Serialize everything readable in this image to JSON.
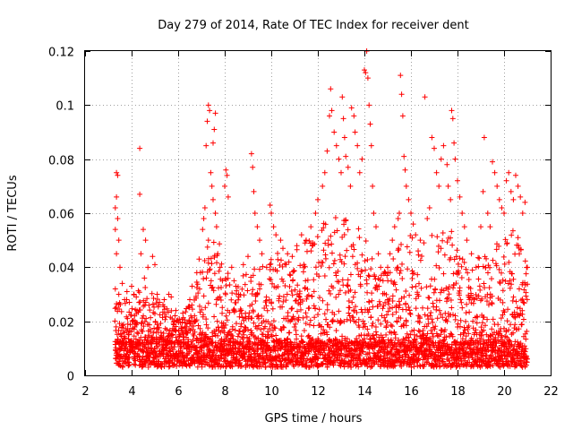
{
  "chart_data": {
    "type": "scatter",
    "title": "Day 279 of 2014, Rate Of TEC Index for receiver dent",
    "xlabel": "GPS time / hours",
    "ylabel": "ROTI / TECUs",
    "xlim": [
      2,
      22
    ],
    "ylim": [
      0,
      0.12
    ],
    "xticks": [
      "2",
      "4",
      "6",
      "8",
      "10",
      "12",
      "14",
      "16",
      "18",
      "20",
      "22"
    ],
    "yticks": [
      "0",
      "0.02",
      "0.04",
      "0.06",
      "0.08",
      "0.1",
      "0.12"
    ],
    "grid": true,
    "marker": "+",
    "marker_color": "#ff0000",
    "series": [
      {
        "name": "ROTI",
        "points": [
          [
            3.35,
            0.075
          ],
          [
            3.4,
            0.074
          ],
          [
            3.35,
            0.066
          ],
          [
            3.3,
            0.062
          ],
          [
            3.4,
            0.058
          ],
          [
            3.3,
            0.054
          ],
          [
            3.45,
            0.05
          ],
          [
            3.35,
            0.045
          ],
          [
            3.5,
            0.04
          ],
          [
            3.3,
            0.032
          ],
          [
            3.45,
            0.03
          ],
          [
            3.6,
            0.034
          ],
          [
            3.8,
            0.031
          ],
          [
            3.9,
            0.027
          ],
          [
            4.0,
            0.033
          ],
          [
            4.1,
            0.03
          ],
          [
            4.2,
            0.029
          ],
          [
            4.35,
            0.084
          ],
          [
            4.35,
            0.067
          ],
          [
            4.5,
            0.054
          ],
          [
            4.6,
            0.05
          ],
          [
            4.4,
            0.045
          ],
          [
            4.7,
            0.04
          ],
          [
            4.55,
            0.036
          ],
          [
            4.9,
            0.044
          ],
          [
            5.0,
            0.041
          ],
          [
            5.1,
            0.03
          ],
          [
            5.2,
            0.027
          ],
          [
            5.4,
            0.028
          ],
          [
            5.6,
            0.03
          ],
          [
            5.7,
            0.029
          ],
          [
            5.9,
            0.024
          ],
          [
            6.2,
            0.023
          ],
          [
            6.5,
            0.028
          ],
          [
            6.6,
            0.033
          ],
          [
            6.8,
            0.038
          ],
          [
            6.9,
            0.043
          ],
          [
            7.05,
            0.054
          ],
          [
            7.1,
            0.058
          ],
          [
            7.15,
            0.062
          ],
          [
            7.2,
            0.085
          ],
          [
            7.25,
            0.094
          ],
          [
            7.3,
            0.1
          ],
          [
            7.35,
            0.098
          ],
          [
            7.5,
            0.086
          ],
          [
            7.55,
            0.091
          ],
          [
            7.6,
            0.097
          ],
          [
            7.4,
            0.075
          ],
          [
            7.45,
            0.07
          ],
          [
            7.5,
            0.065
          ],
          [
            7.6,
            0.06
          ],
          [
            7.65,
            0.055
          ],
          [
            7.3,
            0.05
          ],
          [
            7.7,
            0.045
          ],
          [
            7.8,
            0.04
          ],
          [
            7.9,
            0.035
          ],
          [
            8.0,
            0.07
          ],
          [
            8.05,
            0.076
          ],
          [
            8.1,
            0.074
          ],
          [
            8.15,
            0.066
          ],
          [
            8.3,
            0.04
          ],
          [
            8.4,
            0.035
          ],
          [
            8.6,
            0.03
          ],
          [
            8.8,
            0.041
          ],
          [
            9.0,
            0.044
          ],
          [
            9.15,
            0.082
          ],
          [
            9.2,
            0.077
          ],
          [
            9.25,
            0.068
          ],
          [
            9.3,
            0.06
          ],
          [
            9.4,
            0.055
          ],
          [
            9.5,
            0.05
          ],
          [
            9.6,
            0.045
          ],
          [
            9.8,
            0.04
          ],
          [
            9.95,
            0.063
          ],
          [
            10.0,
            0.06
          ],
          [
            10.1,
            0.055
          ],
          [
            10.2,
            0.052
          ],
          [
            10.4,
            0.05
          ],
          [
            10.5,
            0.047
          ],
          [
            10.7,
            0.045
          ],
          [
            10.9,
            0.044
          ],
          [
            11.1,
            0.048
          ],
          [
            11.3,
            0.052
          ],
          [
            11.5,
            0.05
          ],
          [
            11.7,
            0.055
          ],
          [
            11.9,
            0.06
          ],
          [
            12.0,
            0.065
          ],
          [
            12.2,
            0.07
          ],
          [
            12.3,
            0.075
          ],
          [
            12.4,
            0.083
          ],
          [
            12.5,
            0.096
          ],
          [
            12.55,
            0.106
          ],
          [
            12.6,
            0.098
          ],
          [
            12.7,
            0.09
          ],
          [
            12.8,
            0.085
          ],
          [
            12.9,
            0.08
          ],
          [
            13.0,
            0.075
          ],
          [
            13.05,
            0.103
          ],
          [
            13.1,
            0.095
          ],
          [
            13.15,
            0.088
          ],
          [
            13.2,
            0.081
          ],
          [
            13.3,
            0.077
          ],
          [
            13.4,
            0.07
          ],
          [
            13.45,
            0.099
          ],
          [
            13.55,
            0.096
          ],
          [
            13.6,
            0.09
          ],
          [
            13.7,
            0.085
          ],
          [
            13.8,
            0.075
          ],
          [
            13.9,
            0.08
          ],
          [
            14.0,
            0.113
          ],
          [
            14.05,
            0.112
          ],
          [
            14.1,
            0.12
          ],
          [
            14.15,
            0.11
          ],
          [
            14.2,
            0.1
          ],
          [
            14.25,
            0.093
          ],
          [
            14.3,
            0.085
          ],
          [
            14.35,
            0.07
          ],
          [
            14.4,
            0.06
          ],
          [
            14.5,
            0.055
          ],
          [
            14.6,
            0.045
          ],
          [
            14.7,
            0.04
          ],
          [
            14.8,
            0.035
          ],
          [
            14.9,
            0.038
          ],
          [
            15.0,
            0.04
          ],
          [
            15.1,
            0.045
          ],
          [
            15.2,
            0.05
          ],
          [
            15.3,
            0.055
          ],
          [
            15.45,
            0.058
          ],
          [
            15.5,
            0.06
          ],
          [
            15.55,
            0.111
          ],
          [
            15.6,
            0.104
          ],
          [
            15.65,
            0.096
          ],
          [
            15.7,
            0.081
          ],
          [
            15.75,
            0.076
          ],
          [
            15.8,
            0.07
          ],
          [
            15.9,
            0.065
          ],
          [
            16.0,
            0.06
          ],
          [
            16.1,
            0.056
          ],
          [
            16.2,
            0.052
          ],
          [
            16.4,
            0.05
          ],
          [
            16.6,
            0.103
          ],
          [
            16.7,
            0.058
          ],
          [
            16.8,
            0.062
          ],
          [
            16.9,
            0.088
          ],
          [
            17.0,
            0.084
          ],
          [
            17.1,
            0.075
          ],
          [
            17.2,
            0.07
          ],
          [
            17.3,
            0.08
          ],
          [
            17.4,
            0.085
          ],
          [
            17.55,
            0.078
          ],
          [
            17.6,
            0.07
          ],
          [
            17.7,
            0.065
          ],
          [
            17.75,
            0.098
          ],
          [
            17.8,
            0.095
          ],
          [
            17.85,
            0.086
          ],
          [
            17.9,
            0.08
          ],
          [
            18.0,
            0.072
          ],
          [
            18.1,
            0.066
          ],
          [
            18.2,
            0.06
          ],
          [
            18.3,
            0.055
          ],
          [
            18.4,
            0.05
          ],
          [
            18.6,
            0.045
          ],
          [
            18.8,
            0.04
          ],
          [
            19.0,
            0.055
          ],
          [
            19.1,
            0.068
          ],
          [
            19.15,
            0.088
          ],
          [
            19.3,
            0.06
          ],
          [
            19.4,
            0.055
          ],
          [
            19.5,
            0.079
          ],
          [
            19.6,
            0.075
          ],
          [
            19.7,
            0.07
          ],
          [
            19.8,
            0.065
          ],
          [
            19.9,
            0.062
          ],
          [
            20.0,
            0.06
          ],
          [
            20.1,
            0.072
          ],
          [
            20.2,
            0.075
          ],
          [
            20.3,
            0.068
          ],
          [
            20.4,
            0.065
          ],
          [
            20.5,
            0.074
          ],
          [
            20.6,
            0.07
          ],
          [
            20.7,
            0.066
          ],
          [
            20.8,
            0.06
          ],
          [
            20.9,
            0.064
          ],
          [
            21.0,
            0.04
          ]
        ]
      }
    ],
    "dense_band": {
      "x_start": 3.3,
      "x_end": 21.0,
      "baseline_low": 0.003,
      "baseline_high": 0.012,
      "envelope_x": [
        3.3,
        3.6,
        4.0,
        4.5,
        5.0,
        5.5,
        6.0,
        6.5,
        7.0,
        7.3,
        7.6,
        8.0,
        8.5,
        9.0,
        9.5,
        10.0,
        10.5,
        11.0,
        11.5,
        12.0,
        12.5,
        13.0,
        13.5,
        14.0,
        14.5,
        15.0,
        15.5,
        16.0,
        16.5,
        17.0,
        17.5,
        18.0,
        18.5,
        19.0,
        19.5,
        20.0,
        20.5,
        21.0
      ],
      "envelope_y": [
        0.032,
        0.028,
        0.03,
        0.034,
        0.03,
        0.026,
        0.022,
        0.026,
        0.04,
        0.055,
        0.052,
        0.045,
        0.036,
        0.042,
        0.04,
        0.048,
        0.044,
        0.046,
        0.05,
        0.055,
        0.06,
        0.062,
        0.058,
        0.055,
        0.04,
        0.038,
        0.05,
        0.052,
        0.048,
        0.055,
        0.058,
        0.05,
        0.04,
        0.045,
        0.048,
        0.05,
        0.055,
        0.04
      ]
    }
  }
}
